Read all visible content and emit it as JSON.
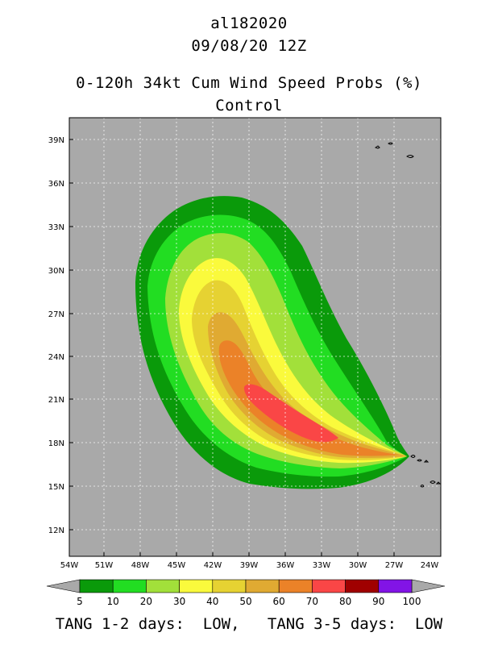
{
  "header": {
    "storm_id": "al182020",
    "datetime": "09/08/20 12Z",
    "product": "0-120h 34kt Cum Wind Speed Probs (%)",
    "run": "Control"
  },
  "map": {
    "lat_labels": [
      "39N",
      "36N",
      "33N",
      "30N",
      "27N",
      "24N",
      "21N",
      "18N",
      "15N",
      "12N"
    ],
    "lon_labels": [
      "54W",
      "51W",
      "48W",
      "45W",
      "42W",
      "39W",
      "36W",
      "33W",
      "30W",
      "27W",
      "24W"
    ],
    "lat_range": [
      10,
      40
    ],
    "lon_range": [
      -54,
      -23
    ],
    "background_color": "#a9a9a9",
    "grid": "dotted"
  },
  "colorbar": {
    "levels": [
      "5",
      "10",
      "20",
      "30",
      "40",
      "50",
      "60",
      "70",
      "80",
      "90",
      "100"
    ],
    "colors": [
      "#0a9a0a",
      "#22dd22",
      "#a2e03a",
      "#fafa3c",
      "#e6d232",
      "#e0aa32",
      "#eb8228",
      "#fa4646",
      "#a00000",
      "#8214e6"
    ]
  },
  "footer": {
    "text": "TANG 1-2 days:  LOW,   TANG 3-5 days:  LOW"
  }
}
